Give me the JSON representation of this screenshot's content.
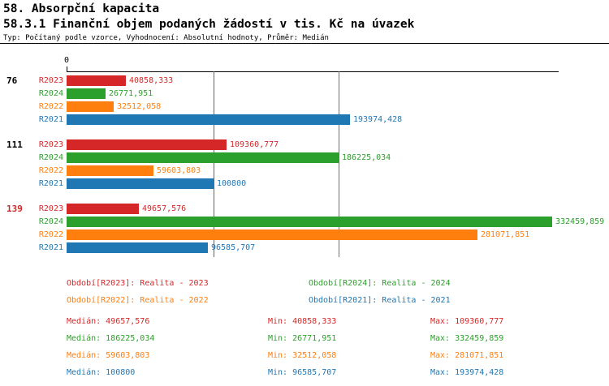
{
  "header": {
    "section_title": "58. Absorpční kapacita",
    "chart_title": "58.3.1 Finanční objem podaných žádostí v tis. Kč na úvazek",
    "subtitle": "Typ: Počítaný podle vzorce, Vyhodnocení: Absolutní hodnoty, Průměr: Medián"
  },
  "chart_data": {
    "type": "bar",
    "orientation": "horizontal",
    "title": "58.3.1 Finanční objem podaných žádostí v tis. Kč na úvazek",
    "xlabel": "",
    "ylabel": "",
    "x_axis": {
      "min": 0,
      "zero_label": "0"
    },
    "grid": false,
    "categories": [
      "76",
      "111",
      "139"
    ],
    "category_label_colors": [
      "#000000",
      "#000000",
      "#d62728"
    ],
    "series": [
      {
        "name": "R2023",
        "color": "#d62728",
        "values": [
          40858.333,
          109360.777,
          49657.576
        ],
        "labels": [
          "40858,333",
          "109360,777",
          "49657,576"
        ]
      },
      {
        "name": "R2024",
        "color": "#2ca02c",
        "values": [
          26771.951,
          186225.034,
          332459.859
        ],
        "labels": [
          "26771,951",
          "186225,034",
          "332459,859"
        ]
      },
      {
        "name": "R2022",
        "color": "#ff7f0e",
        "values": [
          32512.058,
          59603.803,
          281071.851
        ],
        "labels": [
          "32512,058",
          "59603,803",
          "281071,851"
        ]
      },
      {
        "name": "R2021",
        "color": "#1f77b4",
        "values": [
          193974.428,
          100800,
          96585.707
        ],
        "labels": [
          "193974,428",
          "100800",
          "96585,707"
        ]
      }
    ],
    "median_lines": [
      {
        "series": "R2021",
        "value": 100800,
        "color": "#1f77b4"
      },
      {
        "series": "R2024",
        "value": 186225.034,
        "color": "#2ca02c"
      }
    ]
  },
  "legend": {
    "items": [
      {
        "label": "Období[R2023]: Realita - 2023",
        "color": "#d62728"
      },
      {
        "label": "Období[R2024]: Realita - 2024",
        "color": "#2ca02c"
      },
      {
        "label": "Období[R2022]: Realita - 2022",
        "color": "#ff7f0e"
      },
      {
        "label": "Období[R2021]: Realita - 2021",
        "color": "#1f77b4"
      }
    ]
  },
  "stats": {
    "rows": [
      {
        "color": "#d62728",
        "median": "Medián: 49657,576",
        "min": "Min: 40858,333",
        "max": "Max: 109360,777"
      },
      {
        "color": "#2ca02c",
        "median": "Medián: 186225,034",
        "min": "Min: 26771,951",
        "max": "Max: 332459,859"
      },
      {
        "color": "#ff7f0e",
        "median": "Medián: 59603,803",
        "min": "Min: 32512,058",
        "max": "Max: 281071,851"
      },
      {
        "color": "#1f77b4",
        "median": "Medián: 100800",
        "min": "Min: 96585,707",
        "max": "Max: 193974,428"
      }
    ]
  }
}
